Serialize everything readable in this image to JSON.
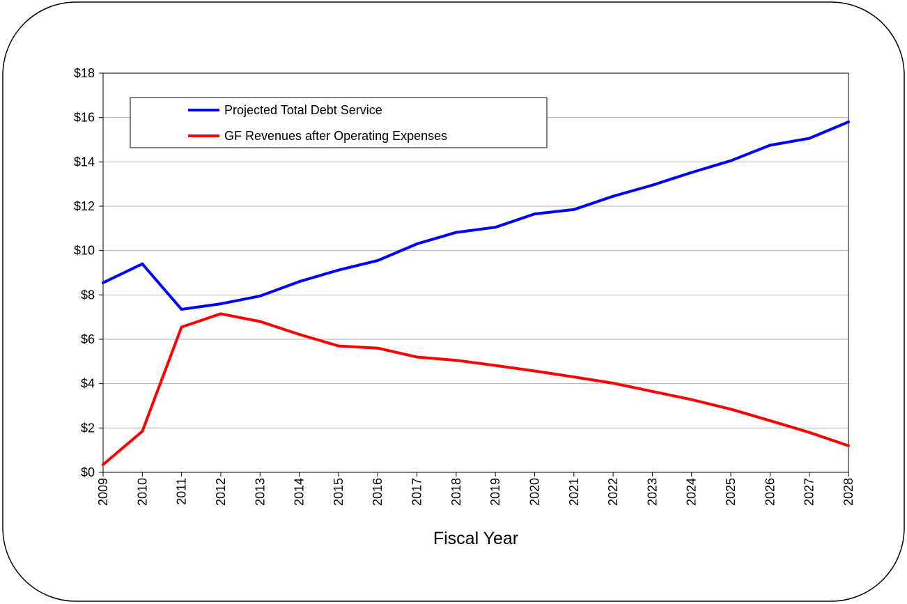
{
  "chart_data": {
    "type": "line",
    "title": "",
    "xlabel": "Fiscal Year",
    "ylabel": "",
    "x": [
      "2009",
      "2010",
      "2011",
      "2012",
      "2013",
      "2014",
      "2015",
      "2016",
      "2017",
      "2018",
      "2019",
      "2020",
      "2021",
      "2022",
      "2023",
      "2024",
      "2025",
      "2026",
      "2027",
      "2028"
    ],
    "ylim": [
      0,
      18
    ],
    "y_ticks": [
      "$0",
      "$2",
      "$4",
      "$6",
      "$8",
      "$10",
      "$12",
      "$14",
      "$16",
      "$18"
    ],
    "grid": true,
    "legend_position": "top-left",
    "series": [
      {
        "name": "Projected Total Debt Service",
        "color": "#0000ff",
        "values": [
          8.55,
          9.4,
          7.35,
          7.6,
          7.95,
          8.6,
          9.12,
          9.55,
          10.3,
          10.82,
          11.05,
          11.65,
          11.85,
          12.45,
          12.95,
          13.52,
          14.05,
          14.75,
          15.06,
          15.8
        ]
      },
      {
        "name": "GF Revenues after Operating Expenses",
        "color": "#ff0000",
        "values": [
          0.35,
          1.85,
          6.55,
          7.15,
          6.8,
          6.22,
          5.7,
          5.6,
          5.2,
          5.05,
          4.82,
          4.57,
          4.3,
          4.02,
          3.65,
          3.28,
          2.85,
          2.33,
          1.8,
          1.2
        ]
      }
    ]
  }
}
